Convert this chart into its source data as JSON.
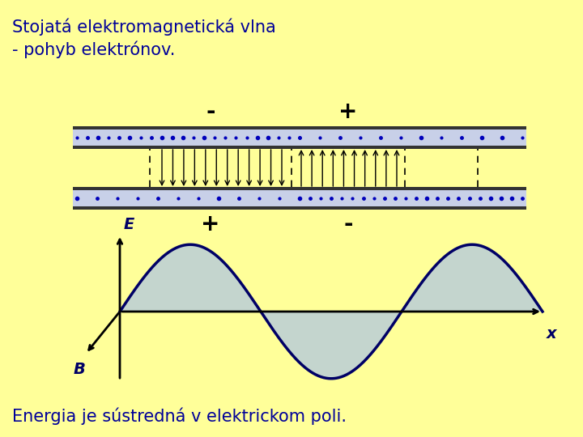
{
  "bg_color": "#ffff99",
  "title_line1": "Stojatá elektromagnetická vlna",
  "title_line2": "- pohyb elektrónov.",
  "bottom_text": "Energia je sústredná v elektrickom poli.",
  "title_color": "#000099",
  "bottom_text_color": "#000099",
  "plate_color_inner": "#c8d0e8",
  "plate_color_outer": "#333333",
  "dot_color": "#0000bb",
  "arrow_color": "#000000",
  "sine_color": "#000066",
  "sine_fill_color": "#b0c8e0",
  "axis_color": "#000000",
  "label_color": "#000066",
  "E_label": "E",
  "B_label": "B",
  "x_label": "x"
}
